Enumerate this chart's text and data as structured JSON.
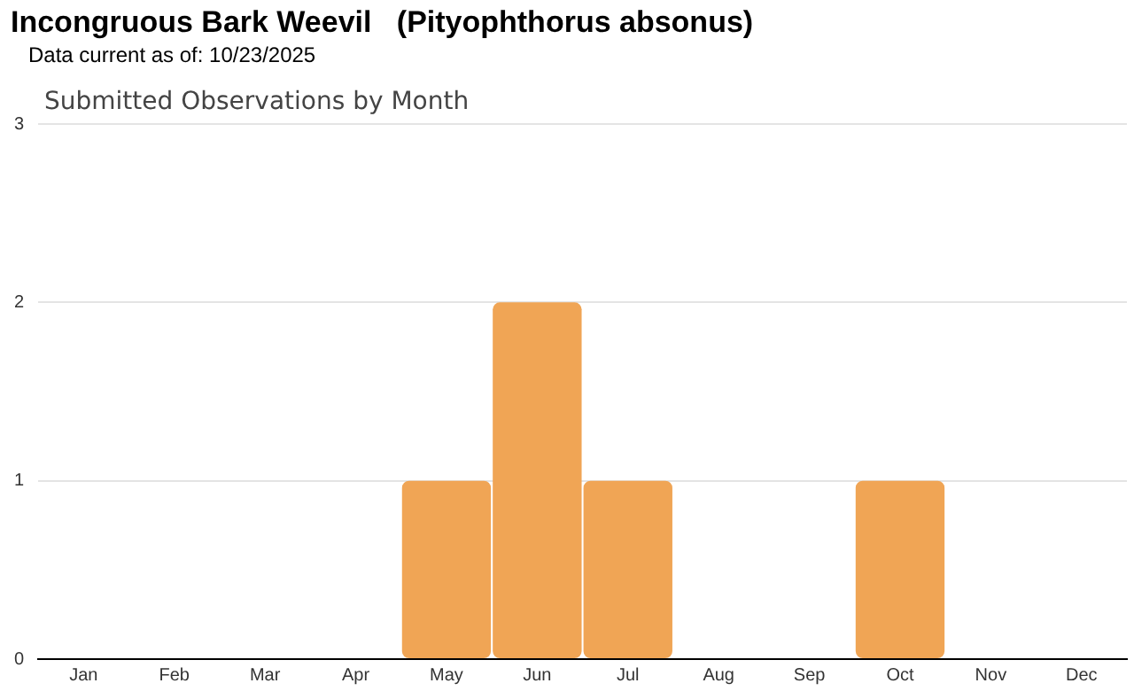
{
  "chart_data": {
    "type": "bar",
    "title": "Incongruous Bark Weevil   (Pityophthorus absonus)",
    "subtitle": "Data current as of: 10/23/2025",
    "annotations": [
      "Submitted Observations by Month"
    ],
    "categories": [
      "Jan",
      "Feb",
      "Mar",
      "Apr",
      "May",
      "Jun",
      "Jul",
      "Aug",
      "Sep",
      "Oct",
      "Nov",
      "Dec"
    ],
    "values": [
      0,
      0,
      0,
      0,
      1,
      2,
      1,
      0,
      0,
      1,
      0,
      0
    ],
    "color": "#f0a555",
    "ylim": [
      0,
      3
    ],
    "yticks": [
      0,
      1,
      2,
      3
    ],
    "grid": "y",
    "legend": false
  }
}
